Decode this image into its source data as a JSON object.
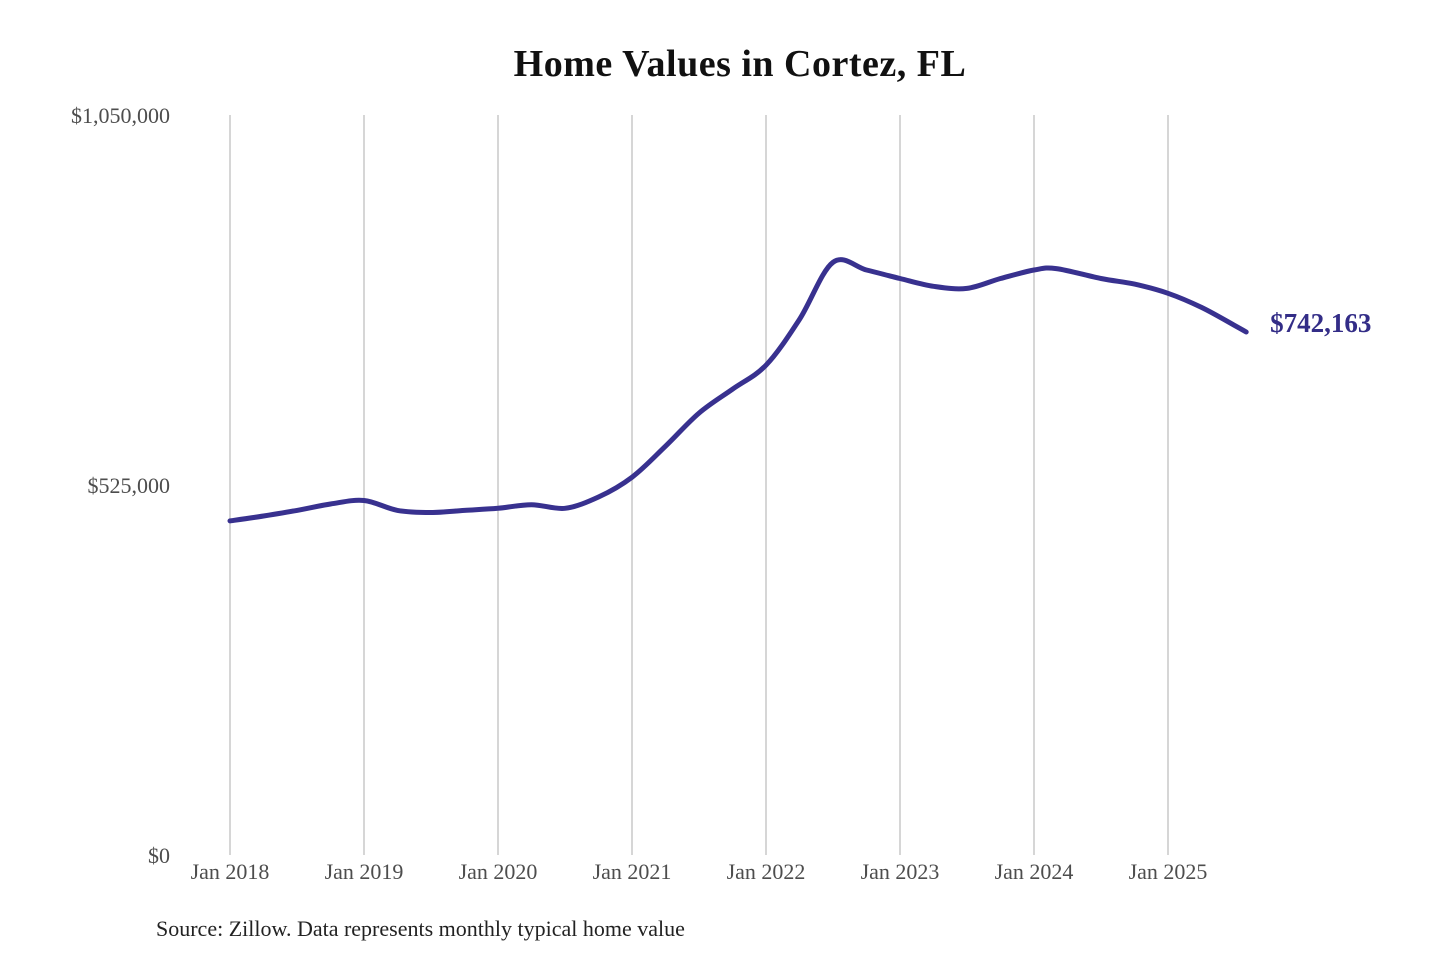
{
  "title": "Home Values in Cortez, FL",
  "source_note": "Source: Zillow. Data represents monthly typical home value",
  "end_label": "$742,163",
  "colors": {
    "line": "#38318f",
    "end_label": "#332d87",
    "gridline": "#c9c9c9",
    "axis_text": "#4d4d4d",
    "title_text": "#111111",
    "source_text": "#222222",
    "background": "#ffffff"
  },
  "chart_data": {
    "type": "line",
    "title": "Home Values in Cortez, FL",
    "xlabel": "",
    "ylabel": "",
    "ylim": [
      0,
      1050000
    ],
    "grid": "vertical",
    "legend": "none",
    "y_ticks": [
      {
        "value": 0,
        "label": "$0"
      },
      {
        "value": 525000,
        "label": "$525,000"
      },
      {
        "value": 1050000,
        "label": "$1,050,000"
      }
    ],
    "x_ticks": [
      {
        "date": "2018-01",
        "label": "Jan 2018"
      },
      {
        "date": "2019-01",
        "label": "Jan 2019"
      },
      {
        "date": "2020-01",
        "label": "Jan 2020"
      },
      {
        "date": "2021-01",
        "label": "Jan 2021"
      },
      {
        "date": "2022-01",
        "label": "Jan 2022"
      },
      {
        "date": "2023-01",
        "label": "Jan 2023"
      },
      {
        "date": "2024-01",
        "label": "Jan 2024"
      },
      {
        "date": "2025-01",
        "label": "Jan 2025"
      }
    ],
    "series": [
      {
        "name": "Monthly typical home value",
        "points": [
          {
            "date": "2018-01",
            "value": 474000
          },
          {
            "date": "2018-04",
            "value": 481000
          },
          {
            "date": "2018-07",
            "value": 489000
          },
          {
            "date": "2018-10",
            "value": 498000
          },
          {
            "date": "2019-01",
            "value": 503000
          },
          {
            "date": "2019-04",
            "value": 489000
          },
          {
            "date": "2019-07",
            "value": 486000
          },
          {
            "date": "2019-10",
            "value": 489000
          },
          {
            "date": "2020-01",
            "value": 492000
          },
          {
            "date": "2020-04",
            "value": 497000
          },
          {
            "date": "2020-07",
            "value": 492000
          },
          {
            "date": "2020-10",
            "value": 508000
          },
          {
            "date": "2021-01",
            "value": 536000
          },
          {
            "date": "2021-04",
            "value": 580000
          },
          {
            "date": "2021-07",
            "value": 627000
          },
          {
            "date": "2021-10",
            "value": 661000
          },
          {
            "date": "2022-01",
            "value": 695000
          },
          {
            "date": "2022-04",
            "value": 760000
          },
          {
            "date": "2022-07",
            "value": 841000
          },
          {
            "date": "2022-10",
            "value": 830000
          },
          {
            "date": "2023-01",
            "value": 818000
          },
          {
            "date": "2023-04",
            "value": 807000
          },
          {
            "date": "2023-07",
            "value": 804000
          },
          {
            "date": "2023-10",
            "value": 818000
          },
          {
            "date": "2024-01",
            "value": 830000
          },
          {
            "date": "2024-03",
            "value": 832000
          },
          {
            "date": "2024-07",
            "value": 818000
          },
          {
            "date": "2024-10",
            "value": 810000
          },
          {
            "date": "2025-01",
            "value": 797000
          },
          {
            "date": "2025-04",
            "value": 777000
          },
          {
            "date": "2025-07",
            "value": 751000
          },
          {
            "date": "2025-08",
            "value": 742163
          }
        ]
      }
    ]
  }
}
